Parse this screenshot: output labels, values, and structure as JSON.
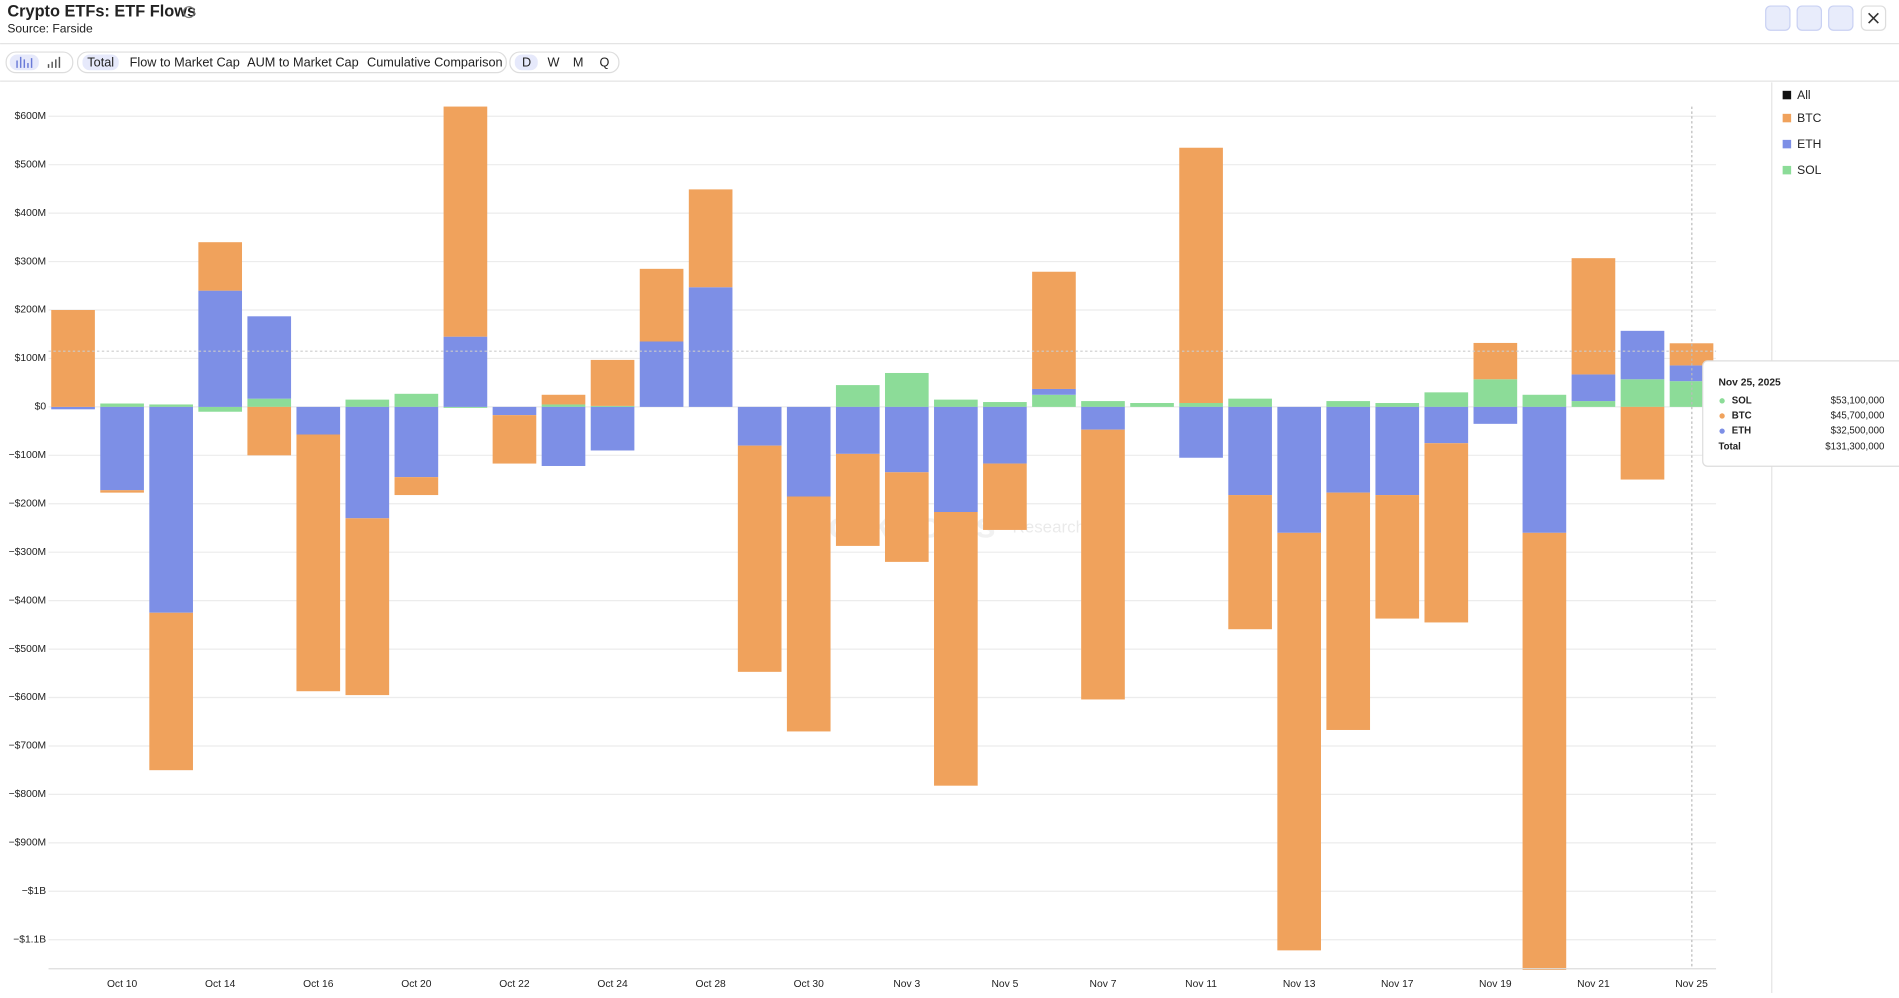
{
  "header": {
    "title": "Crypto ETFs: ETF Flows",
    "source": "Source: Farside",
    "views": [
      "Total",
      "Flow to Market Cap",
      "AUM to Market Cap",
      "Cumulative Comparison"
    ],
    "intervals": [
      "D",
      "W",
      "M",
      "Q"
    ]
  },
  "chart_data": {
    "type": "bar",
    "stacked": true,
    "categories": [
      null,
      "Oct 10",
      null,
      "Oct 14",
      null,
      "Oct 16",
      null,
      "Oct 20",
      null,
      "Oct 22",
      null,
      "Oct 24",
      null,
      "Oct 28",
      null,
      "Oct 30",
      null,
      "Nov 3",
      null,
      "Nov 5",
      null,
      "Nov 7",
      null,
      "Nov 11",
      null,
      "Nov 13",
      null,
      "Nov 17",
      null,
      "Nov 19",
      null,
      "Nov 21",
      null,
      "Nov 25"
    ],
    "series": [
      {
        "name": "BTC",
        "color": "#f0a25c",
        "values": [
          200,
          -5,
          -325,
          100,
          -100,
          -530,
          -365,
          -37,
          475,
          -100,
          20,
          95,
          150,
          202,
          -467,
          -485,
          -190,
          -185,
          -565,
          -137,
          242,
          -557,
          0,
          527,
          -277,
          -862,
          -490,
          -255,
          -370,
          75,
          -905,
          240,
          -150,
          45.7
        ]
      },
      {
        "name": "ETH",
        "color": "#7d8fe6",
        "values": [
          -5,
          -172,
          -425,
          240,
          170,
          -57,
          -230,
          -145,
          145,
          -17,
          -122,
          -90,
          135,
          247,
          -80,
          -185,
          -97,
          -135,
          -217,
          -117,
          12,
          -47,
          0,
          -105,
          -182,
          -260,
          -177,
          -182,
          -75,
          -35,
          -260,
          55,
          100,
          32.5
        ]
      },
      {
        "name": "SOL",
        "color": "#8cdc98",
        "values": [
          0,
          7,
          5,
          -10,
          17,
          0,
          15,
          27,
          -2,
          0,
          5,
          2,
          0,
          0,
          0,
          0,
          45,
          70,
          15,
          10,
          25,
          12,
          8,
          8,
          17,
          0,
          12,
          8,
          30,
          57,
          25,
          12,
          57,
          53.1
        ]
      }
    ],
    "legend_all": "All",
    "ylim": [
      -1160,
      620
    ],
    "yticks": [
      {
        "value": 600,
        "label": "$600M"
      },
      {
        "value": 500,
        "label": "$500M"
      },
      {
        "value": 400,
        "label": "$400M"
      },
      {
        "value": 300,
        "label": "$300M"
      },
      {
        "value": 200,
        "label": "$200M"
      },
      {
        "value": 100,
        "label": "$100M"
      },
      {
        "value": 0,
        "label": "$0"
      },
      {
        "value": -100,
        "label": "−$100M"
      },
      {
        "value": -200,
        "label": "−$200M"
      },
      {
        "value": -300,
        "label": "−$300M"
      },
      {
        "value": -400,
        "label": "−$400M"
      },
      {
        "value": -500,
        "label": "−$500M"
      },
      {
        "value": -600,
        "label": "−$600M"
      },
      {
        "value": -700,
        "label": "−$700M"
      },
      {
        "value": -800,
        "label": "−$800M"
      },
      {
        "value": -900,
        "label": "−$900M"
      },
      {
        "value": -1000,
        "label": "−$1B"
      },
      {
        "value": -1100,
        "label": "−$1.1B"
      }
    ],
    "grid": true,
    "legend_position": "right",
    "watermark": [
      "Blockworks",
      "Research"
    ],
    "tooltip": {
      "date": "Nov 25, 2025",
      "rows": [
        {
          "name": "SOL",
          "value": "$53,100,000"
        },
        {
          "name": "BTC",
          "value": "$45,700,000"
        },
        {
          "name": "ETH",
          "value": "$32,500,000"
        }
      ],
      "total_label": "Total",
      "total": "$131,300,000"
    }
  }
}
